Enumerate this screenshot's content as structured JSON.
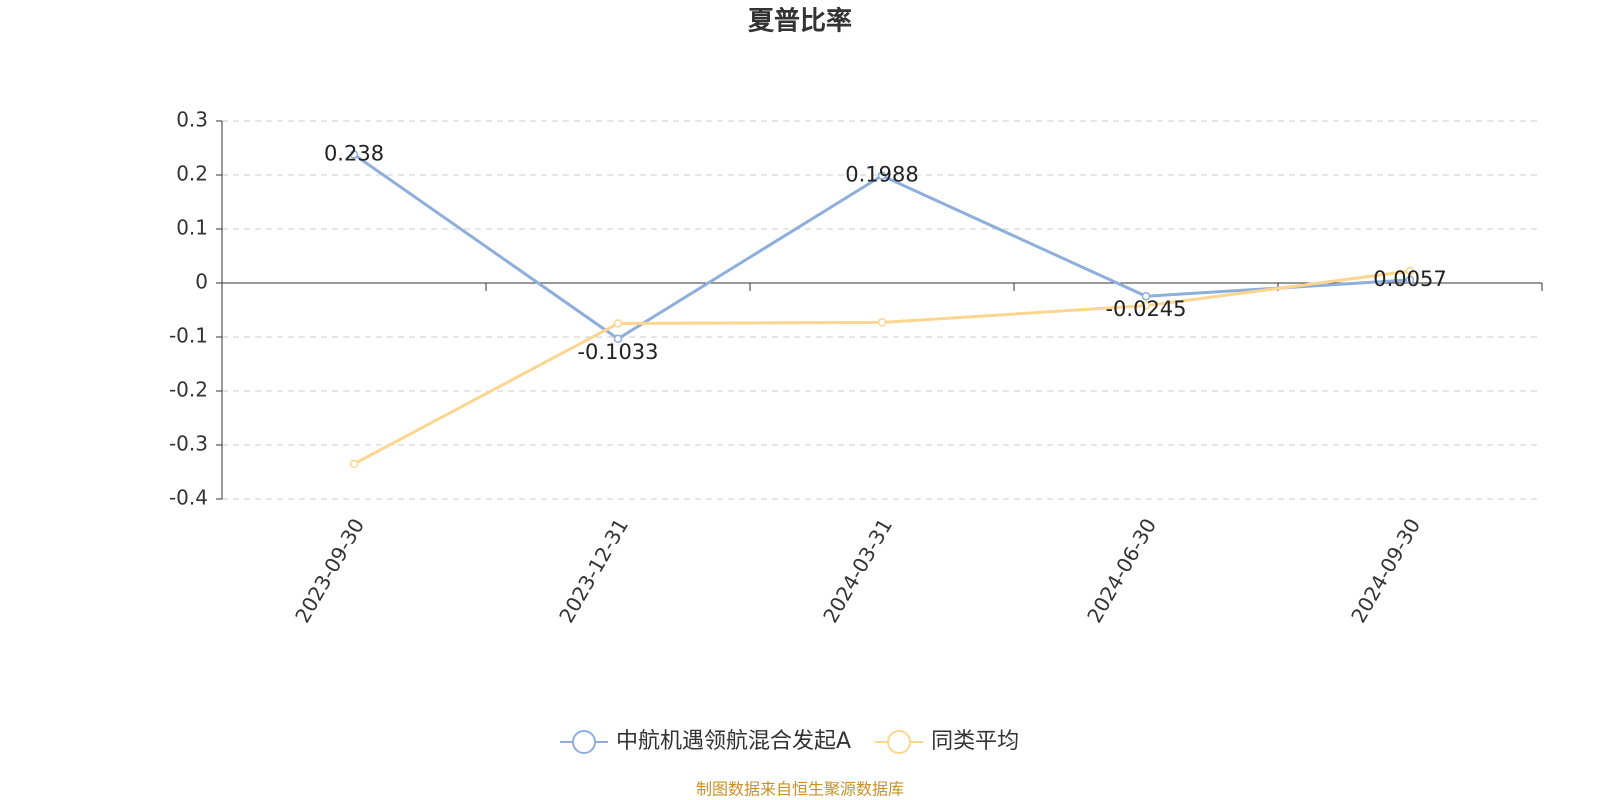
{
  "chart_data": {
    "type": "line",
    "title": "夏普比率",
    "categories": [
      "2023-09-30",
      "2023-12-31",
      "2024-03-31",
      "2024-06-30",
      "2024-09-30"
    ],
    "series": [
      {
        "name": "中航机遇领航混合发起A",
        "color": "#8eaedc",
        "values": [
          0.238,
          -0.1033,
          0.1988,
          -0.0245,
          0.0057
        ],
        "show_labels": true
      },
      {
        "name": "同类平均",
        "color": "#fcd68f",
        "values": [
          -0.335,
          -0.075,
          -0.073,
          -0.042,
          0.022
        ],
        "show_labels": false
      }
    ],
    "ylim": [
      -0.4,
      0.3
    ],
    "yticks": [
      -0.4,
      -0.3,
      -0.2,
      -0.1,
      0,
      0.1,
      0.2,
      0.3
    ],
    "grid": true,
    "legend": "bottom",
    "footer": "制图数据来自恒生聚源数据库"
  }
}
